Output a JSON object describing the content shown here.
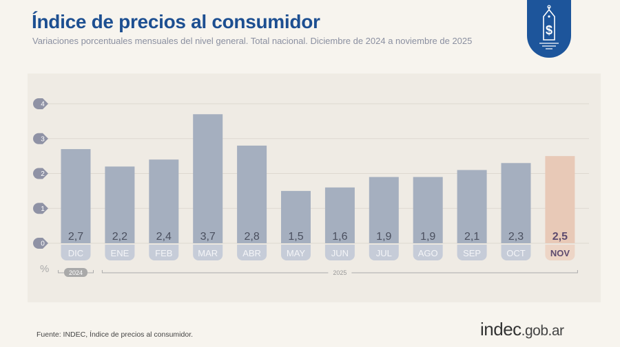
{
  "header": {
    "title": "Índice de precios al consumidor",
    "subtitle": "Variaciones porcentuales mensuales del nivel general. Total nacional. Diciembre de 2024 a noviembre de 2025",
    "badge_icon": "price-tag-dollar-icon"
  },
  "chart_data": {
    "type": "bar",
    "categories": [
      "DIC",
      "ENE",
      "FEB",
      "MAR",
      "ABR",
      "MAY",
      "JUN",
      "JUL",
      "AGO",
      "SEP",
      "OCT",
      "NOV"
    ],
    "values": [
      2.7,
      2.2,
      2.4,
      3.7,
      2.8,
      1.5,
      1.6,
      1.9,
      1.9,
      2.1,
      2.3,
      2.5
    ],
    "data_labels": [
      "2,7",
      "2,2",
      "2,4",
      "3,7",
      "2,8",
      "1,5",
      "1,6",
      "1,9",
      "1,9",
      "2,1",
      "2,3",
      "2,5"
    ],
    "yticks": [
      "0",
      "1",
      "2",
      "3",
      "4"
    ],
    "ylim": [
      0,
      4
    ],
    "ylabel": "%",
    "year_groups": [
      {
        "label": "2024",
        "span": [
          0,
          0
        ]
      },
      {
        "label": "2025",
        "span": [
          1,
          11
        ]
      }
    ],
    "grid": true,
    "colors": {
      "bar": "#a5afbf",
      "highlight": "#e8c9b7",
      "tick_badge": "#8f92a5",
      "month_pill": "#c6ccd8",
      "highlight_pill": "#edd5c6"
    }
  },
  "footer": {
    "source": "Fuente: INDEC, Índice de precios al consumidor.",
    "logo_main": "indec",
    "logo_domain": ".gob.ar"
  }
}
